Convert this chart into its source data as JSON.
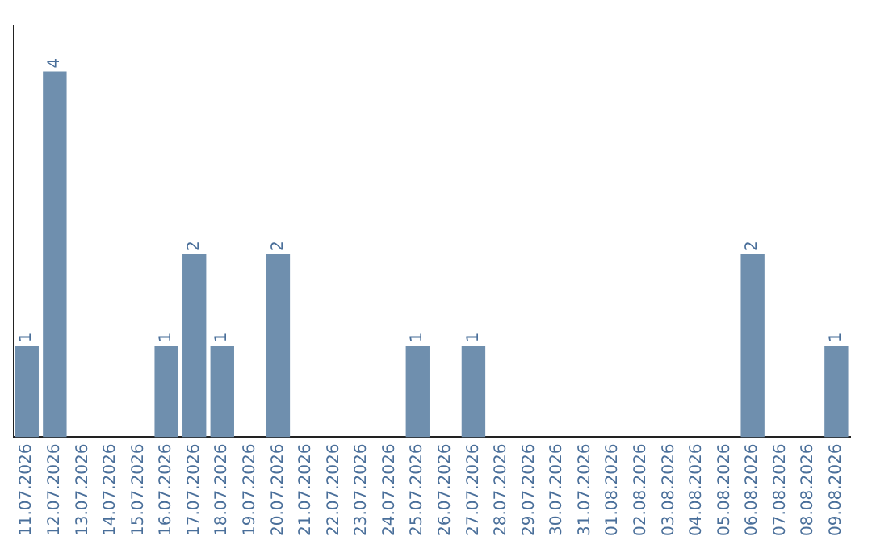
{
  "chart_data": {
    "type": "bar",
    "categories": [
      "11.07.2026",
      "12.07.2026",
      "13.07.2026",
      "14.07.2026",
      "15.07.2026",
      "16.07.2026",
      "17.07.2026",
      "18.07.2026",
      "19.07.2026",
      "20.07.2026",
      "21.07.2026",
      "22.07.2026",
      "23.07.2026",
      "24.07.2026",
      "25.07.2026",
      "26.07.2026",
      "27.07.2026",
      "28.07.2026",
      "29.07.2026",
      "30.07.2026",
      "31.07.2026",
      "01.08.2026",
      "02.08.2026",
      "03.08.2026",
      "04.08.2026",
      "05.08.2026",
      "06.08.2026",
      "07.08.2026",
      "08.08.2026",
      "09.08.2026"
    ],
    "values": [
      1,
      4,
      0,
      0,
      0,
      1,
      2,
      1,
      0,
      2,
      0,
      0,
      0,
      0,
      1,
      0,
      1,
      0,
      0,
      0,
      0,
      0,
      0,
      0,
      0,
      0,
      2,
      0,
      0,
      1
    ],
    "value_labels": [
      "1",
      "4",
      null,
      null,
      null,
      "1",
      "2",
      "1",
      null,
      "2",
      null,
      null,
      null,
      null,
      "1",
      null,
      "1",
      null,
      null,
      null,
      null,
      null,
      null,
      null,
      null,
      null,
      "2",
      null,
      null,
      "1"
    ],
    "color": "#6f8fae",
    "grid": false,
    "legend": false
  }
}
